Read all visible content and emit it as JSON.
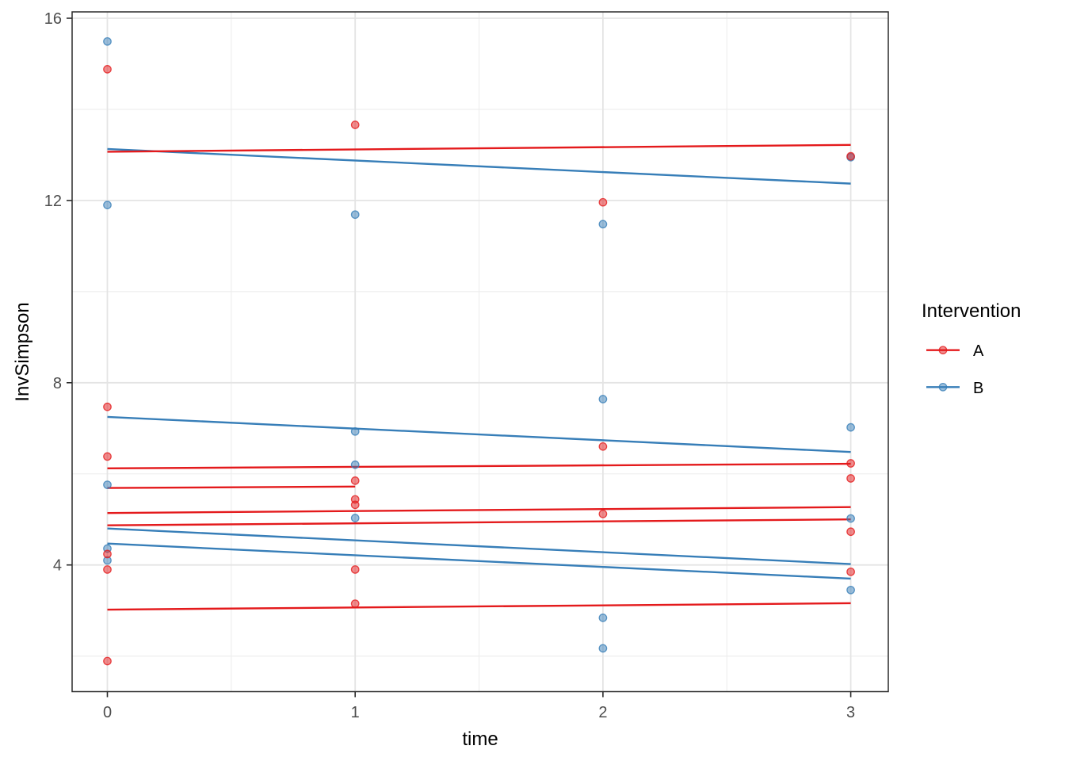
{
  "figure": {
    "background": "#FFFFFF"
  },
  "chart_data": {
    "type": "scatter",
    "title": "",
    "xlabel": "time",
    "ylabel": "InvSimpson",
    "xlim": [
      -0.14,
      3.15
    ],
    "ylim": [
      1.23,
      16.14
    ],
    "x_ticks": [
      0,
      1,
      2,
      3
    ],
    "y_ticks": [
      4,
      8,
      12,
      16
    ],
    "x_minor_gridlines": [
      0.5,
      1.5,
      2.5
    ],
    "y_minor_gridlines": [
      2,
      6,
      10,
      14
    ],
    "grid": "on",
    "panel_border": "on",
    "colors": {
      "intervention_A": "#E41A1C",
      "intervention_B": "#377EB8",
      "grid_major": "#E4E4E4",
      "grid_minor": "#EDEDED",
      "tick_label": "#4D4D4D",
      "axis_title": "#000000",
      "panel_border": "#2B2B2B",
      "background": "#FFFFFF"
    },
    "legend": {
      "title": "Intervention",
      "position": "right",
      "entries": [
        {
          "label": "A",
          "color": "#E41A1C"
        },
        {
          "label": "B",
          "color": "#377EB8"
        }
      ]
    },
    "series": [
      {
        "name": "A",
        "geom": "point",
        "color": "#E41A1C",
        "points": [
          [
            0,
            14.88
          ],
          [
            0,
            7.47
          ],
          [
            0,
            6.38
          ],
          [
            0,
            4.24
          ],
          [
            0,
            3.9
          ],
          [
            0,
            1.89
          ],
          [
            1,
            13.66
          ],
          [
            1,
            5.85
          ],
          [
            1,
            5.44
          ],
          [
            1,
            5.32
          ],
          [
            1,
            3.9
          ],
          [
            1,
            3.15
          ],
          [
            2,
            11.96
          ],
          [
            2,
            6.6
          ],
          [
            2,
            5.12
          ],
          [
            3,
            12.97
          ],
          [
            3,
            6.23
          ],
          [
            3,
            5.9
          ],
          [
            3,
            4.73
          ],
          [
            3,
            3.85
          ]
        ]
      },
      {
        "name": "B",
        "geom": "point",
        "color": "#377EB8",
        "points": [
          [
            0,
            15.49
          ],
          [
            0,
            11.9
          ],
          [
            0,
            5.76
          ],
          [
            0,
            4.36
          ],
          [
            0,
            4.1
          ],
          [
            1,
            11.69
          ],
          [
            1,
            6.93
          ],
          [
            1,
            6.2
          ],
          [
            1,
            5.03
          ],
          [
            2,
            11.48
          ],
          [
            2,
            7.64
          ],
          [
            2,
            2.84
          ],
          [
            2,
            2.17
          ],
          [
            3,
            12.95
          ],
          [
            3,
            7.02
          ],
          [
            3,
            5.02
          ],
          [
            3,
            3.45
          ]
        ]
      },
      {
        "name": "A fitted lines",
        "geom": "line",
        "color": "#E41A1C",
        "lines": [
          [
            [
              0,
              13.07
            ],
            [
              3,
              13.22
            ]
          ],
          [
            [
              0,
              6.12
            ],
            [
              3,
              6.22
            ]
          ],
          [
            [
              0,
              5.69
            ],
            [
              1,
              5.72
            ]
          ],
          [
            [
              0,
              5.14
            ],
            [
              3,
              5.27
            ]
          ],
          [
            [
              0,
              4.87
            ],
            [
              3,
              5.0
            ]
          ],
          [
            [
              0,
              3.02
            ],
            [
              3,
              3.16
            ]
          ]
        ]
      },
      {
        "name": "B fitted lines",
        "geom": "line",
        "color": "#377EB8",
        "lines": [
          [
            [
              0,
              13.13
            ],
            [
              3,
              12.37
            ]
          ],
          [
            [
              0,
              7.25
            ],
            [
              3,
              6.48
            ]
          ],
          [
            [
              0,
              4.8
            ],
            [
              3,
              4.02
            ]
          ],
          [
            [
              0,
              4.47
            ],
            [
              3,
              3.7
            ]
          ]
        ]
      }
    ]
  }
}
